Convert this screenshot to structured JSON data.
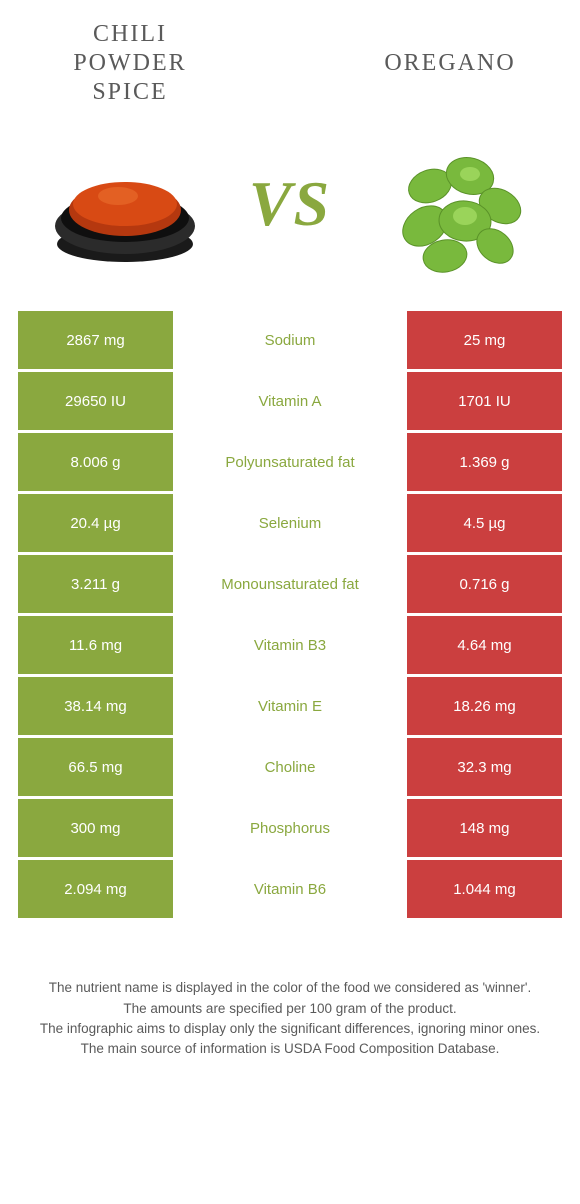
{
  "colors": {
    "left": "#8aa83f",
    "right": "#cb3f3f",
    "mid_text_left": "#8aa83f",
    "mid_text_right": "#cb3f3f"
  },
  "header": {
    "left_title": "Chili powder spice",
    "right_title": "Oregano",
    "vs": "VS"
  },
  "rows": [
    {
      "left": "2867 mg",
      "label": "Sodium",
      "right": "25 mg",
      "winner": "left"
    },
    {
      "left": "29650 IU",
      "label": "Vitamin A",
      "right": "1701 IU",
      "winner": "left"
    },
    {
      "left": "8.006 g",
      "label": "Polyunsaturated fat",
      "right": "1.369 g",
      "winner": "left"
    },
    {
      "left": "20.4 µg",
      "label": "Selenium",
      "right": "4.5 µg",
      "winner": "left"
    },
    {
      "left": "3.211 g",
      "label": "Monounsaturated fat",
      "right": "0.716 g",
      "winner": "left"
    },
    {
      "left": "11.6 mg",
      "label": "Vitamin B3",
      "right": "4.64 mg",
      "winner": "left"
    },
    {
      "left": "38.14 mg",
      "label": "Vitamin E",
      "right": "18.26 mg",
      "winner": "left"
    },
    {
      "left": "66.5 mg",
      "label": "Choline",
      "right": "32.3 mg",
      "winner": "left"
    },
    {
      "left": "300 mg",
      "label": "Phosphorus",
      "right": "148 mg",
      "winner": "left"
    },
    {
      "left": "2.094 mg",
      "label": "Vitamin B6",
      "right": "1.044 mg",
      "winner": "left"
    }
  ],
  "footer": {
    "l1": "The nutrient name is displayed in the color of the food we considered as 'winner'.",
    "l2": "The amounts are specified per 100 gram of the product.",
    "l3": "The infographic aims to display only the significant differences, ignoring minor ones.",
    "l4": "The main source of information is USDA Food Composition Database."
  }
}
